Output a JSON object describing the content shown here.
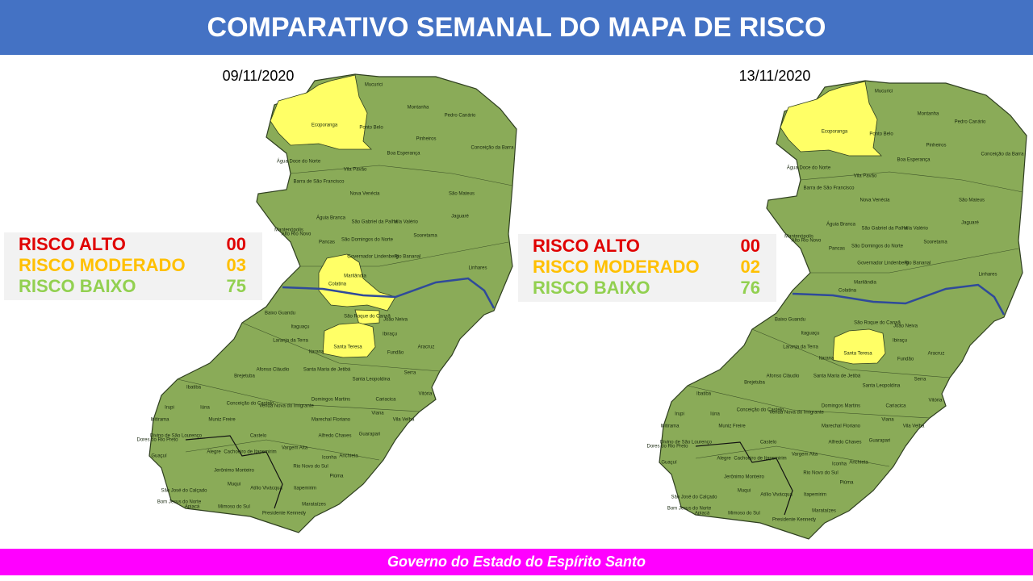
{
  "header": {
    "title": "COMPARATIVO SEMANAL DO MAPA DE RISCO"
  },
  "footer": {
    "text": "Governo do Estado do Espírito Santo"
  },
  "maps": [
    {
      "date": "09/11/2020",
      "legend": [
        {
          "name": "RISCO ALTO",
          "color": "#e00000",
          "count": {
            "value": 0,
            "label": "00"
          }
        },
        {
          "name": "RISCO MODERADO",
          "color": "#ffc000",
          "count": {
            "value": 3,
            "label": "03"
          }
        },
        {
          "name": "RISCO BAIXO",
          "color": "#92d050",
          "count": {
            "value": 75,
            "label": "75"
          }
        }
      ]
    },
    {
      "date": "13/11/2020",
      "legend": [
        {
          "name": "RISCO ALTO",
          "color": "#e00000",
          "count": {
            "value": 0,
            "label": "00"
          }
        },
        {
          "name": "RISCO MODERADO",
          "color": "#ffc000",
          "count": {
            "value": 2,
            "label": "02"
          }
        },
        {
          "name": "RISCO BAIXO",
          "color": "#92d050",
          "count": {
            "value": 76,
            "label": "76"
          }
        }
      ]
    }
  ],
  "municipalities": [
    "Mucurici",
    "Montanha",
    "Pedro Canário",
    "Ecoporanga",
    "Ponto Belo",
    "Pinheiros",
    "Conceição da Barra",
    "Boa Esperança",
    "Água Doce do Norte",
    "Vila Pavão",
    "Barra de São Francisco",
    "Nova Venécia",
    "São Mateus",
    "Mantenópolis",
    "Águia Branca",
    "São Gabriel da Palha",
    "Vila Valério",
    "Jaguaré",
    "Alto Rio Novo",
    "Sooretama",
    "São Domingos do Norte",
    "Pancas",
    "Governador Lindenberg",
    "Rio Bananal",
    "Linhares",
    "Marilândia",
    "Colatina",
    "Baixo Guandu",
    "São Roque do Canaã",
    "João Neiva",
    "Itaguaçu",
    "Ibiraçu",
    "Aracruz",
    "Laranja da Terra",
    "Santa Teresa",
    "Itarana",
    "Fundão",
    "Afonso Cláudio",
    "Santa Maria de Jetibá",
    "Santa Leopoldina",
    "Serra",
    "Brejetuba",
    "Ibatiba",
    "Domingos Martins",
    "Conceição do Castelo",
    "Venda Nova do Imigrante",
    "Cariacica",
    "Vitória",
    "Iúna",
    "Irupi",
    "Muniz Freire",
    "Marechal Floriano",
    "Viana",
    "Vila Velha",
    "Ibitirama",
    "Castelo",
    "Alfredo Chaves",
    "Guarapari",
    "Divino de São Lourenço",
    "Dores do Rio Preto",
    "Alegre",
    "Cachoeiro de Itapemirim",
    "Vargem Alta",
    "Anchieta",
    "Guaçuí",
    "Jerônimo Monteiro",
    "Rio Novo do Sul",
    "Iconha",
    "Piúma",
    "Muqui",
    "Atílio Vivácqua",
    "Itapemirim",
    "São José do Calçado",
    "Apiacá",
    "Bom Jesus do Norte",
    "Mimoso do Sul",
    "Presidente Kennedy",
    "Marataízes"
  ]
}
